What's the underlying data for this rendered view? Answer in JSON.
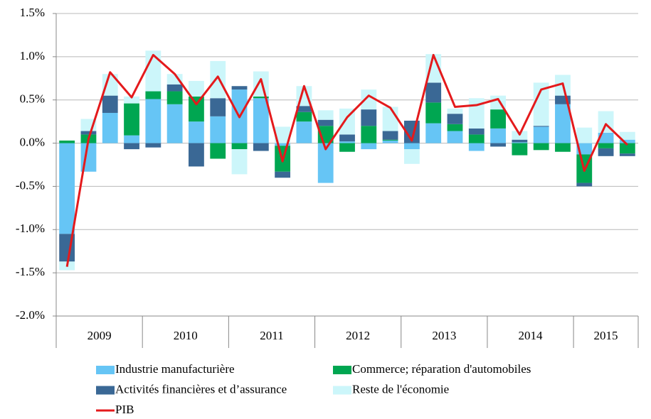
{
  "chart_data": {
    "type": "bar",
    "stacked": true,
    "categories": [
      "2009",
      null,
      null,
      null,
      "2010",
      null,
      null,
      null,
      "2011",
      null,
      null,
      null,
      "2012",
      null,
      null,
      null,
      "2013",
      null,
      null,
      null,
      "2014",
      null,
      null,
      null,
      "2015",
      null,
      null
    ],
    "series": [
      {
        "name": "Industrie manufacturière",
        "type": "bar",
        "color": "#66c5f5",
        "values": [
          -1.05,
          -0.33,
          0.35,
          0.09,
          0.51,
          0.45,
          0.25,
          0.31,
          0.62,
          0.52,
          -0.03,
          0.25,
          -0.46,
          0.02,
          -0.07,
          0.03,
          -0.07,
          0.23,
          0.14,
          -0.09,
          0.17,
          0.01,
          0.19,
          0.45,
          -0.13,
          0.12,
          0.04
        ]
      },
      {
        "name": "Commerce; réparation d'automobiles",
        "type": "bar",
        "color": "#00a651",
        "values": [
          0.03,
          0.1,
          0.0,
          0.37,
          0.09,
          0.15,
          0.29,
          -0.18,
          -0.07,
          0.02,
          -0.3,
          0.11,
          0.2,
          -0.1,
          0.2,
          0.01,
          0.0,
          0.24,
          0.08,
          0.1,
          0.22,
          -0.14,
          -0.08,
          -0.1,
          -0.33,
          -0.06,
          -0.12
        ]
      },
      {
        "name": "Activités financières et d’assurance",
        "type": "bar",
        "color": "#3a6895",
        "values": [
          -0.32,
          0.04,
          0.2,
          -0.07,
          -0.05,
          0.08,
          -0.27,
          0.21,
          0.04,
          -0.09,
          -0.07,
          0.07,
          0.07,
          0.08,
          0.19,
          0.1,
          0.26,
          0.23,
          0.12,
          0.07,
          -0.04,
          0.03,
          0.01,
          0.1,
          -0.04,
          -0.09,
          -0.03
        ]
      },
      {
        "name": "Reste de l'économie",
        "type": "bar",
        "color": "#ccf6fa",
        "values": [
          -0.1,
          0.14,
          0.25,
          0.08,
          0.47,
          0.12,
          0.18,
          0.43,
          -0.29,
          0.29,
          0.19,
          0.23,
          0.11,
          0.3,
          0.23,
          0.28,
          -0.17,
          0.33,
          0.06,
          0.35,
          0.16,
          0.1,
          0.5,
          0.24,
          0.18,
          0.25,
          0.09
        ]
      },
      {
        "name": "PIB",
        "type": "line",
        "color": "#e41a1c",
        "values": [
          -1.43,
          0.05,
          0.82,
          0.53,
          1.02,
          0.8,
          0.45,
          0.77,
          0.3,
          0.74,
          -0.21,
          0.66,
          -0.07,
          0.3,
          0.55,
          0.41,
          0.03,
          1.02,
          0.42,
          0.44,
          0.51,
          0.1,
          0.62,
          0.69,
          -0.32,
          0.22,
          -0.02
        ]
      }
    ],
    "ylim": [
      -2.0,
      1.5
    ],
    "yticks": [
      {
        "value": -2.0,
        "label": "-2.0%"
      },
      {
        "value": -1.5,
        "label": "-1.5%"
      },
      {
        "value": -1.0,
        "label": "-1.0%"
      },
      {
        "value": -0.5,
        "label": "-0.5%"
      },
      {
        "value": 0.0,
        "label": "0.0%"
      },
      {
        "value": 0.5,
        "label": "0.5%"
      },
      {
        "value": 1.0,
        "label": "1.0%"
      },
      {
        "value": 1.5,
        "label": "1.5%"
      }
    ],
    "grid": true,
    "legend": "bottom"
  }
}
